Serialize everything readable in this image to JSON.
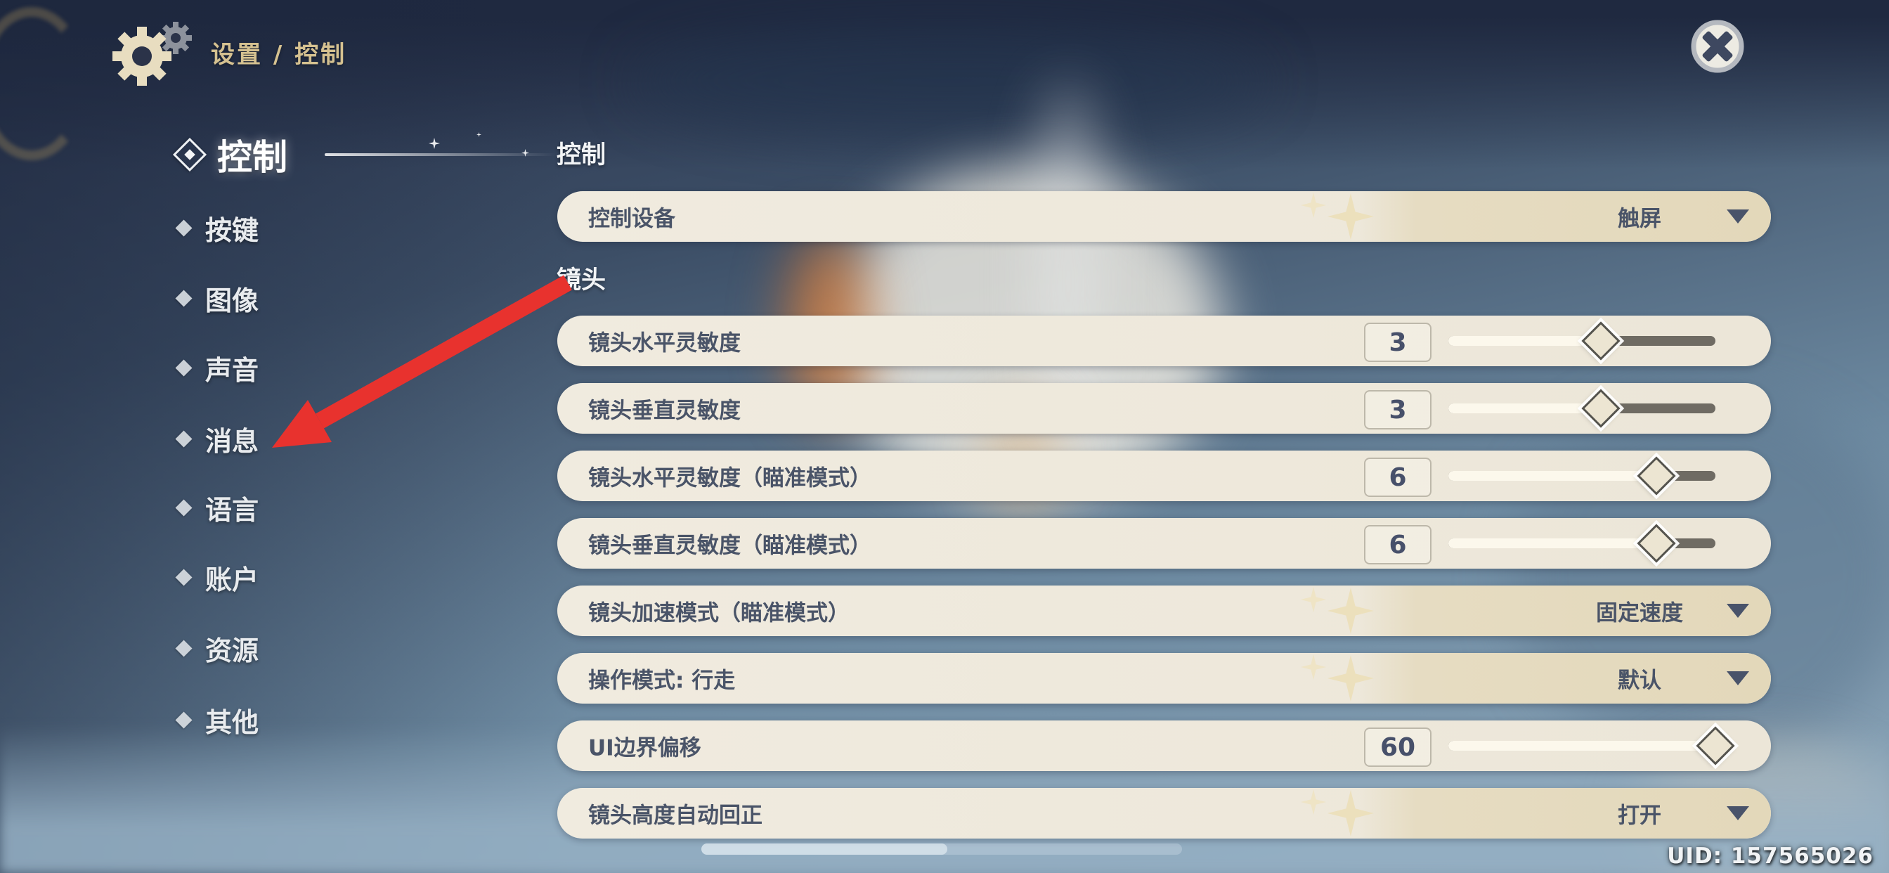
{
  "header": {
    "breadcrumb": "设置 / 控制"
  },
  "sidebar": {
    "items": [
      {
        "label": "控制",
        "selected": true
      },
      {
        "label": "按键",
        "selected": false
      },
      {
        "label": "图像",
        "selected": false
      },
      {
        "label": "声音",
        "selected": false
      },
      {
        "label": "消息",
        "selected": false
      },
      {
        "label": "语言",
        "selected": false
      },
      {
        "label": "账户",
        "selected": false
      },
      {
        "label": "资源",
        "selected": false
      },
      {
        "label": "其他",
        "selected": false
      }
    ]
  },
  "main": {
    "section_control_title": "控制",
    "section_camera_title": "镜头",
    "rows": [
      {
        "type": "dropdown",
        "label": "控制设备",
        "value": "触屏"
      },
      {
        "type": "slider",
        "label": "镜头水平灵敏度",
        "value": "3",
        "percent": 57
      },
      {
        "type": "slider",
        "label": "镜头垂直灵敏度",
        "value": "3",
        "percent": 57
      },
      {
        "type": "slider",
        "label": "镜头水平灵敏度（瞄准模式）",
        "value": "6",
        "percent": 78
      },
      {
        "type": "slider",
        "label": "镜头垂直灵敏度（瞄准模式）",
        "value": "6",
        "percent": 78
      },
      {
        "type": "dropdown",
        "label": "镜头加速模式（瞄准模式）",
        "value": "固定速度"
      },
      {
        "type": "dropdown",
        "label": "操作模式: 行走",
        "value": "默认"
      },
      {
        "type": "slider",
        "label": "UI边界偏移",
        "value": "60",
        "percent": 100
      },
      {
        "type": "dropdown",
        "label": "镜头高度自动回正",
        "value": "打开"
      }
    ]
  },
  "footer": {
    "uid": "UID: 157565026"
  },
  "colors": {
    "accent_gold": "#d5c190",
    "row_cream": "#ece6d8",
    "row_dark_beige": "#e3d8ba",
    "label_navy": "#4a5468",
    "annotation_arrow_red": "#e8322e",
    "slider_track": "#6f6b63",
    "slider_fill": "#fcf8ec"
  },
  "icons": {
    "gear": "settings-gear",
    "close": "close-x",
    "dropdown": "triangle-down",
    "bullet": "diamond",
    "annotation": "red-arrow"
  }
}
